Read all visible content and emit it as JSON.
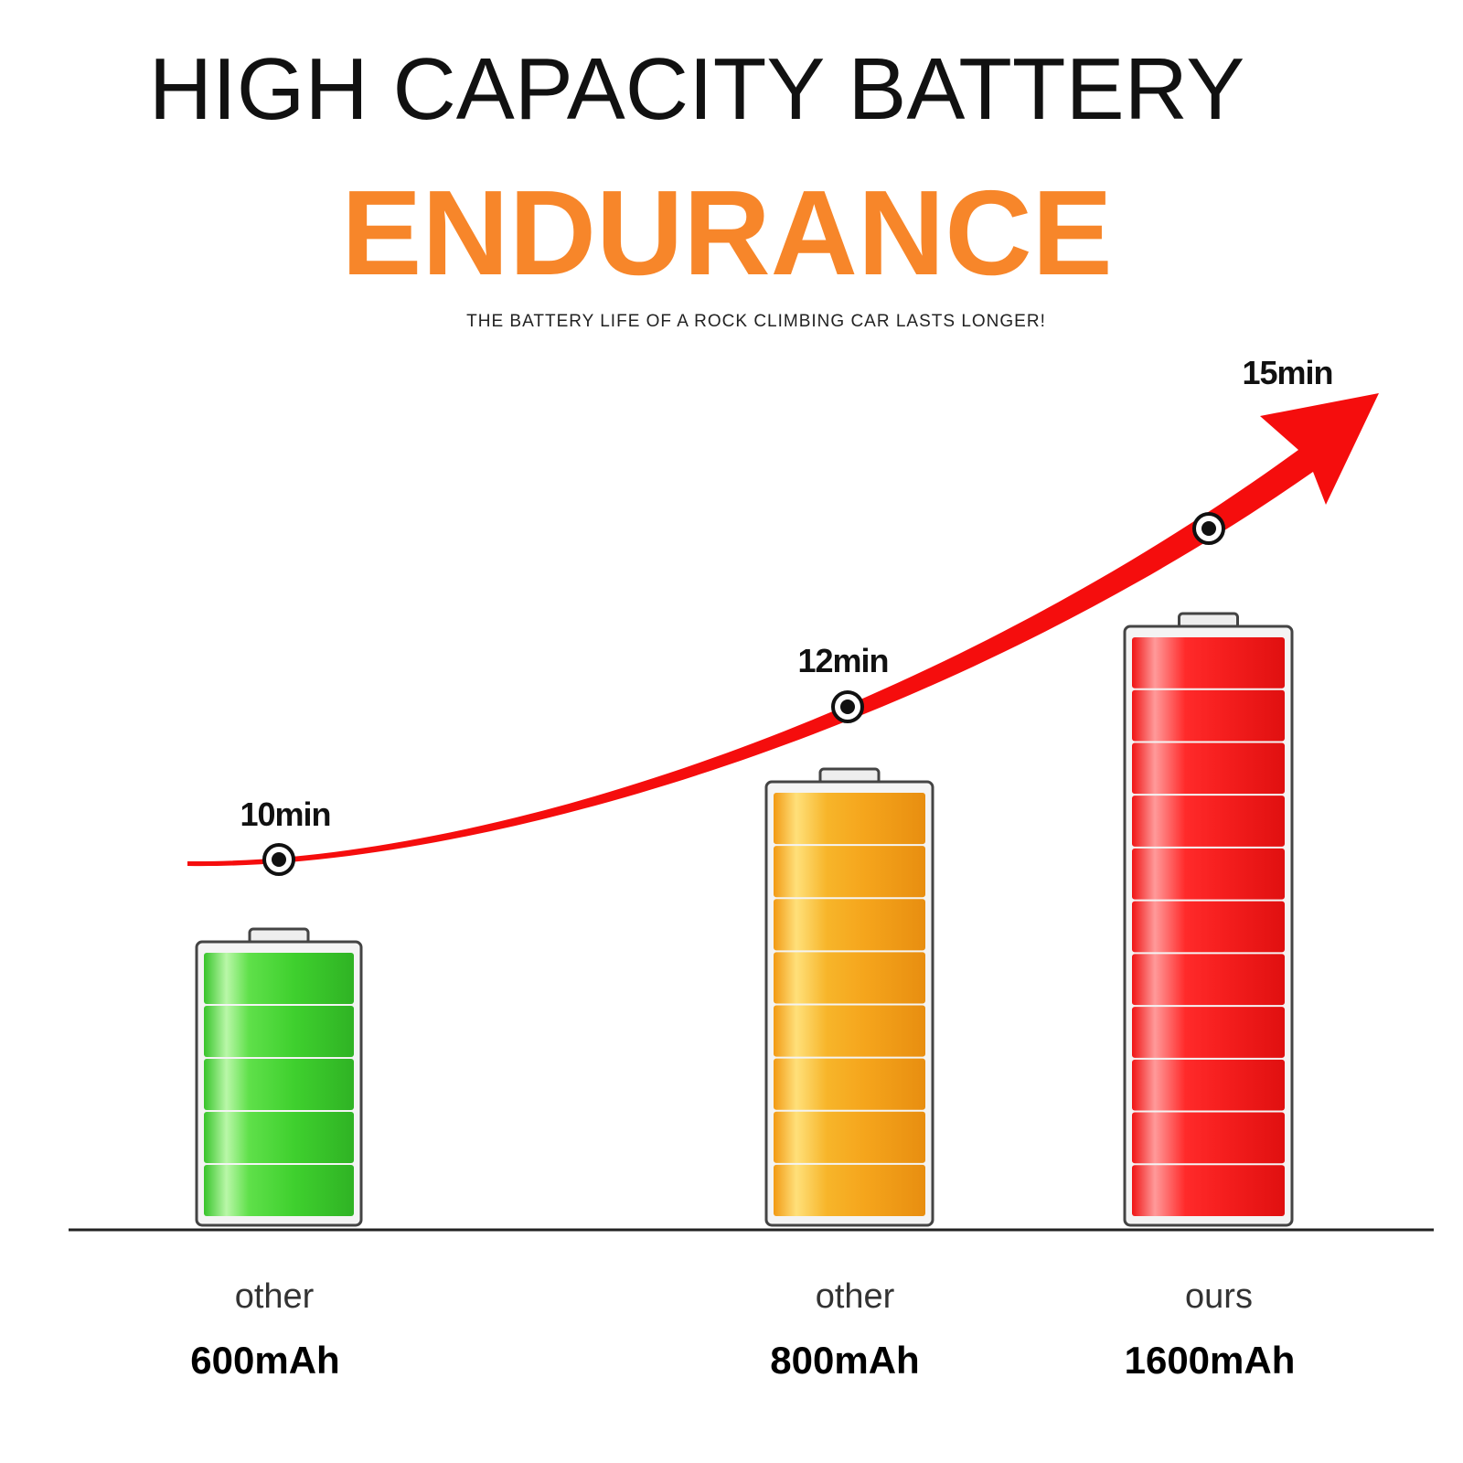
{
  "header": {
    "title": "HIGH CAPACITY BATTERY",
    "highlight": "ENDURANCE",
    "subtitle": "THE BATTERY LIFE OF A ROCK CLIMBING CAR LASTS LONGER!"
  },
  "items": [
    {
      "time": "10min",
      "label": "other",
      "capacity": "600mAh"
    },
    {
      "time": "12min",
      "label": "other",
      "capacity": "800mAh"
    },
    {
      "time": "15min",
      "label": "ours",
      "capacity": "1600mAh"
    }
  ]
}
